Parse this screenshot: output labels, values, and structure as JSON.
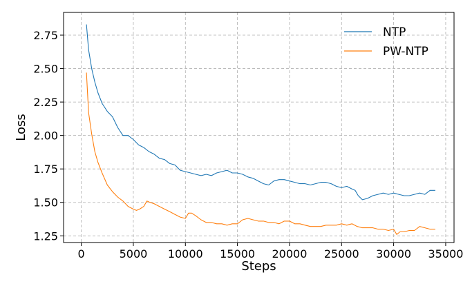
{
  "chart_data": {
    "type": "line",
    "xlabel": "Steps",
    "ylabel": "Loss",
    "xlim": [
      -1700,
      35800
    ],
    "ylim": [
      1.2,
      2.92
    ],
    "xticks": [
      0,
      5000,
      10000,
      15000,
      20000,
      25000,
      30000,
      35000
    ],
    "yticks": [
      1.25,
      1.5,
      1.75,
      2.0,
      2.25,
      2.5,
      2.75
    ],
    "xtick_labels": [
      "0",
      "5000",
      "10000",
      "15000",
      "20000",
      "25000",
      "30000",
      "35000"
    ],
    "ytick_labels": [
      "1.25",
      "1.50",
      "1.75",
      "2.00",
      "2.25",
      "2.50",
      "2.75"
    ],
    "grid": true,
    "legend_position": "top-right",
    "series": [
      {
        "name": "NTP",
        "color": "#1f77b4",
        "x": [
          500,
          700,
          1000,
          1300,
          1600,
          2000,
          2500,
          3000,
          3500,
          4000,
          4500,
          5000,
          5500,
          6000,
          6500,
          7000,
          7500,
          8000,
          8500,
          9000,
          9500,
          10000,
          10500,
          11000,
          11500,
          12000,
          12500,
          13000,
          13500,
          14000,
          14500,
          15000,
          15500,
          16000,
          16500,
          17000,
          17500,
          18000,
          18500,
          19000,
          19500,
          20000,
          20500,
          21000,
          21500,
          22000,
          22500,
          23000,
          23500,
          24000,
          24500,
          25000,
          25500,
          26000,
          26300,
          26600,
          27000,
          27500,
          28000,
          28500,
          29000,
          29500,
          30000,
          30500,
          31000,
          31500,
          32000,
          32500,
          33000,
          33500,
          34000
        ],
        "y": [
          2.83,
          2.64,
          2.5,
          2.4,
          2.32,
          2.24,
          2.18,
          2.14,
          2.06,
          2.0,
          2.0,
          1.97,
          1.93,
          1.91,
          1.88,
          1.86,
          1.83,
          1.82,
          1.79,
          1.78,
          1.74,
          1.73,
          1.72,
          1.71,
          1.7,
          1.71,
          1.7,
          1.72,
          1.73,
          1.74,
          1.72,
          1.72,
          1.71,
          1.69,
          1.68,
          1.66,
          1.64,
          1.63,
          1.66,
          1.67,
          1.67,
          1.66,
          1.65,
          1.64,
          1.64,
          1.63,
          1.64,
          1.65,
          1.65,
          1.64,
          1.62,
          1.61,
          1.62,
          1.6,
          1.59,
          1.55,
          1.52,
          1.53,
          1.55,
          1.56,
          1.57,
          1.56,
          1.57,
          1.56,
          1.55,
          1.55,
          1.56,
          1.57,
          1.56,
          1.59,
          1.59
        ]
      },
      {
        "name": "PW-NTP",
        "color": "#ff7f0e",
        "x": [
          500,
          700,
          1000,
          1300,
          1600,
          2000,
          2500,
          3000,
          3500,
          4000,
          4500,
          5000,
          5300,
          5600,
          6000,
          6300,
          6600,
          7000,
          7500,
          8000,
          8500,
          9000,
          9500,
          10000,
          10300,
          10600,
          11000,
          11500,
          12000,
          12500,
          13000,
          13500,
          14000,
          14500,
          15000,
          15500,
          16000,
          16500,
          17000,
          17500,
          18000,
          18500,
          19000,
          19500,
          20000,
          20500,
          21000,
          21500,
          22000,
          22500,
          23000,
          23500,
          24000,
          24500,
          25000,
          25500,
          26000,
          26500,
          27000,
          27500,
          28000,
          28500,
          29000,
          29500,
          30000,
          30300,
          30600,
          31000,
          31500,
          32000,
          32500,
          33000,
          33500,
          34000
        ],
        "y": [
          2.47,
          2.17,
          2.01,
          1.88,
          1.8,
          1.72,
          1.63,
          1.58,
          1.54,
          1.51,
          1.47,
          1.45,
          1.44,
          1.45,
          1.47,
          1.51,
          1.5,
          1.49,
          1.47,
          1.45,
          1.43,
          1.41,
          1.39,
          1.38,
          1.42,
          1.42,
          1.4,
          1.37,
          1.35,
          1.35,
          1.34,
          1.34,
          1.33,
          1.34,
          1.34,
          1.37,
          1.38,
          1.37,
          1.36,
          1.36,
          1.35,
          1.35,
          1.34,
          1.36,
          1.36,
          1.34,
          1.34,
          1.33,
          1.32,
          1.32,
          1.32,
          1.33,
          1.33,
          1.33,
          1.34,
          1.33,
          1.34,
          1.32,
          1.31,
          1.31,
          1.31,
          1.3,
          1.3,
          1.29,
          1.3,
          1.26,
          1.28,
          1.28,
          1.29,
          1.29,
          1.32,
          1.31,
          1.3,
          1.3
        ]
      }
    ]
  }
}
